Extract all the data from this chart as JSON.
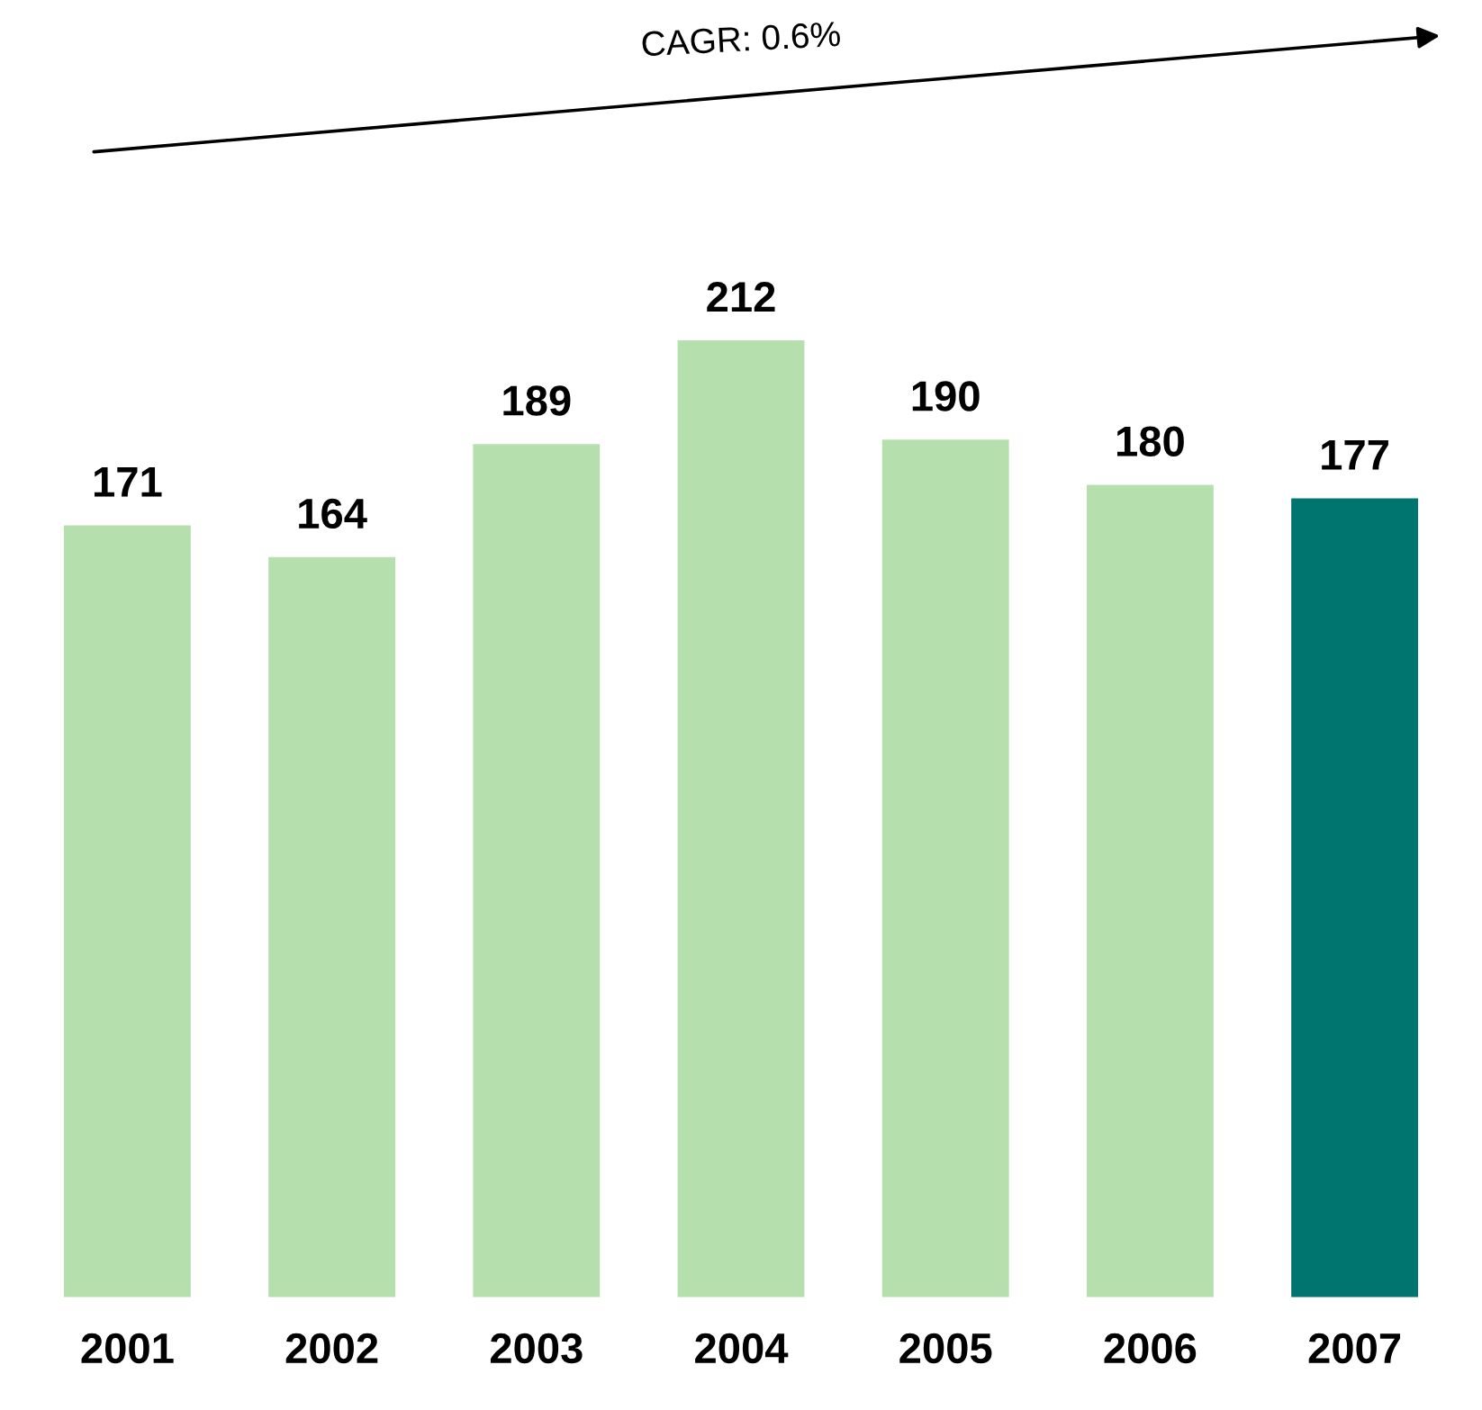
{
  "chart_data": {
    "type": "bar",
    "categories": [
      "2001",
      "2002",
      "2003",
      "2004",
      "2005",
      "2006",
      "2007"
    ],
    "values": [
      171,
      164,
      189,
      212,
      190,
      180,
      177
    ],
    "colors": [
      "#b5e0ad",
      "#b5e0ad",
      "#b5e0ad",
      "#b5e0ad",
      "#b5e0ad",
      "#b5e0ad",
      "#00746f"
    ],
    "data_labels": true,
    "annotations": [
      "CAGR: 0.6%"
    ],
    "grid": false,
    "legend": false
  }
}
